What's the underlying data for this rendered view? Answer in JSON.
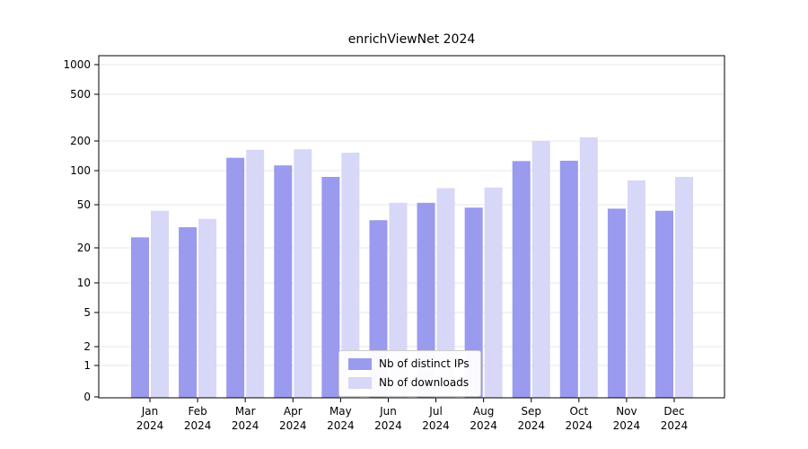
{
  "chart_data": {
    "type": "bar",
    "title": "enrichViewNet 2024",
    "year_label": "2024",
    "categories": [
      "Jan",
      "Feb",
      "Mar",
      "Apr",
      "May",
      "Jun",
      "Jul",
      "Aug",
      "Sep",
      "Oct",
      "Nov",
      "Dec"
    ],
    "yticks": [
      0,
      1,
      2,
      5,
      10,
      20,
      50,
      100,
      200,
      500,
      1000
    ],
    "yscale": "symlog",
    "ylim": [
      0,
      1500
    ],
    "grid": "horizontal",
    "legend_position": "lower-center-inside",
    "series": [
      {
        "name": "Nb of distinct IPs",
        "color": "#9a9aee",
        "values": [
          25,
          31,
          135,
          113,
          88,
          36,
          52,
          47,
          125,
          126,
          46,
          44
        ]
      },
      {
        "name": "Nb of downloads",
        "color": "#d7d7f8",
        "values": [
          44,
          37,
          163,
          165,
          152,
          52,
          70,
          71,
          200,
          215,
          82,
          88
        ]
      }
    ]
  }
}
